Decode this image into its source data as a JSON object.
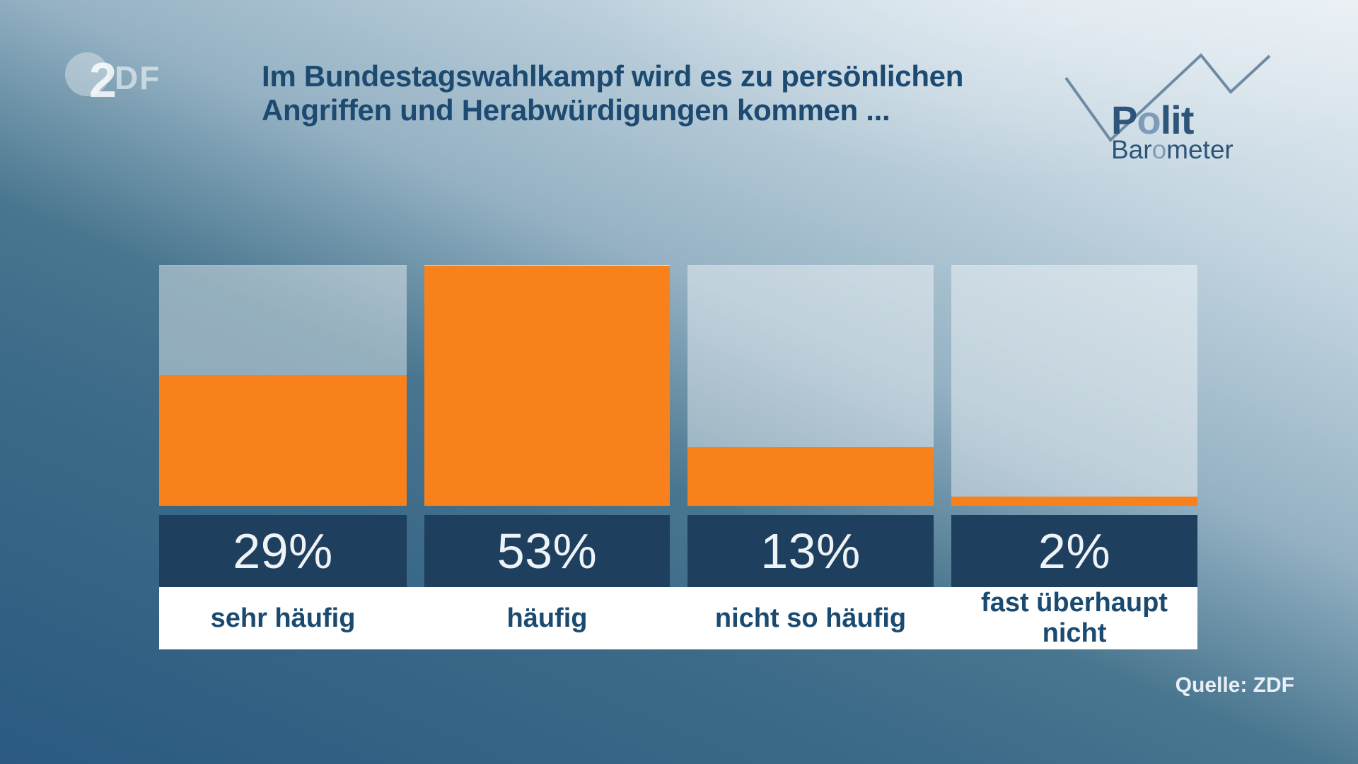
{
  "header": {
    "title_line1": "Im Bundestagswahlkampf wird es zu persönlichen",
    "title_line2": "Angriffen und Herabwürdigungen kommen ...",
    "zdf_logo": {
      "two": "2",
      "df": "DF"
    },
    "polit_logo": {
      "p": "P",
      "o1": "o",
      "lit": "lit",
      "bar": "Bar",
      "o2": "o",
      "meter": "meter"
    }
  },
  "chart_data": {
    "type": "bar",
    "title": "Im Bundestagswahlkampf wird es zu persönlichen Angriffen und Herabwürdigungen kommen ...",
    "categories": [
      "sehr häufig",
      "häufig",
      "nicht so häufig",
      "fast überhaupt nicht"
    ],
    "values": [
      29,
      53,
      13,
      2
    ],
    "value_labels": [
      "29%",
      "53%",
      "13%",
      "2%"
    ],
    "unit": "%",
    "scale": "bars scaled so the maximum value (53%) fills the full bar area",
    "ylim": [
      0,
      53
    ],
    "grid": false,
    "legend": false,
    "bar_color": "#f8811c",
    "track_color": "rgba(255,255,255,0.42)",
    "value_band_color": "#1f3f5e"
  },
  "footer": {
    "source": "Quelle: ZDF"
  },
  "colors": {
    "background_dark": "#2b5a81",
    "background_light": "#e8eff4",
    "bar_orange": "#f8811c",
    "band_navy": "#1f3f5e",
    "text_blue": "#1c4a70",
    "logo_blue": "#2d5479",
    "logo_light_blue": "#7e9cba",
    "zigzag_line": "#6f8ba4",
    "source_text": "#e8eff5"
  }
}
